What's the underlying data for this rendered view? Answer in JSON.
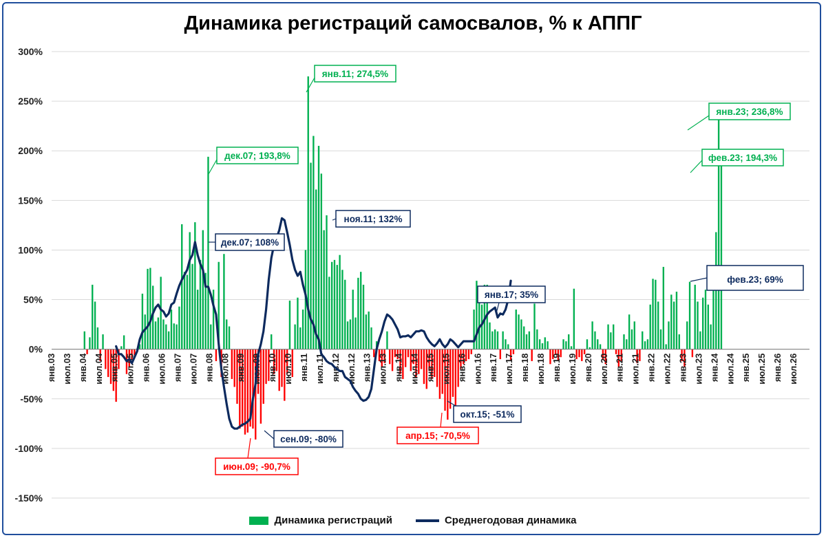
{
  "chart_data": {
    "type": "bar",
    "title": "Динамика регистраций самосвалов, % к АППГ",
    "ylim": [
      -150,
      300
    ],
    "y_tick_labels": [
      "300%",
      "250%",
      "200%",
      "150%",
      "100%",
      "50%",
      "0%",
      "-50%",
      "-100%",
      "-150%"
    ],
    "y_tick_values": [
      300,
      250,
      200,
      150,
      100,
      50,
      0,
      -50,
      -100,
      -150
    ],
    "x_tick_labels": [
      "янв.03",
      "июл.03",
      "янв.04",
      "июл.04",
      "янв.05",
      "июл.05",
      "янв.06",
      "июл.06",
      "янв.07",
      "июл.07",
      "янв.08",
      "июл.08",
      "янв.09",
      "июл.09",
      "янв.10",
      "июл.10",
      "янв.11",
      "июл.11",
      "янв.12",
      "июл.12",
      "янв.13",
      "июл.13",
      "янв.14",
      "июл.14",
      "янв.15",
      "июл.15",
      "янв.16",
      "июл.16",
      "янв.17",
      "июл.17",
      "янв.18",
      "июл.18",
      "янв.19",
      "июл.19",
      "янв.20",
      "июл.20",
      "янв.21",
      "июл.21",
      "янв.22",
      "июл.22",
      "янв.23",
      "июл.23",
      "янв.24",
      "июл.24",
      "янв.25",
      "июл.25",
      "янв.26",
      "июл.26"
    ],
    "grid": true,
    "legend_position": "bottom",
    "series": [
      {
        "name": "Динамика регистраций",
        "kind": "bar",
        "color_positive": "#00b050",
        "color_negative": "#ff0000",
        "start": "янв.03",
        "values": [
          0,
          0,
          0,
          0,
          0,
          0,
          0,
          0,
          0,
          0,
          0,
          0,
          18,
          -5,
          12,
          65,
          48,
          22,
          -12,
          15,
          -20,
          -28,
          -35,
          -42,
          -53,
          -20,
          3,
          14,
          -25,
          -18,
          -10,
          -6,
          -3,
          5,
          56,
          35,
          81,
          82,
          64,
          28,
          32,
          73,
          30,
          25,
          18,
          40,
          26,
          25,
          43,
          126,
          78,
          75,
          118,
          86,
          128,
          60,
          90,
          120,
          77,
          194,
          25,
          60,
          -12,
          88,
          -28,
          96,
          30,
          23,
          -30,
          -38,
          -55,
          -80,
          -78,
          -86,
          -84,
          -78,
          -80,
          -91,
          -45,
          -75,
          -55,
          -35,
          -32,
          15,
          -25,
          -22,
          -42,
          -38,
          -52,
          -25,
          49,
          -28,
          25,
          52,
          22,
          40,
          100,
          275,
          188,
          215,
          161,
          205,
          177,
          120,
          135,
          73,
          88,
          90,
          85,
          95,
          80,
          70,
          28,
          30,
          60,
          32,
          72,
          78,
          65,
          35,
          38,
          22,
          -8,
          8,
          -12,
          -18,
          -14,
          18,
          -15,
          -22,
          -8,
          -10,
          -25,
          -30,
          -18,
          -8,
          -22,
          -15,
          -28,
          -25,
          -20,
          -35,
          -40,
          -22,
          -30,
          -28,
          -38,
          -50,
          -45,
          -62,
          -71,
          -60,
          -48,
          -58,
          -38,
          -20,
          -15,
          -12,
          -10,
          -5,
          40,
          69,
          50,
          45,
          65,
          65,
          27,
          18,
          20,
          18,
          -10,
          18,
          10,
          5,
          -12,
          -5,
          40,
          35,
          30,
          23,
          15,
          18,
          -12,
          46,
          20,
          10,
          6,
          12,
          8,
          -15,
          -10,
          -5,
          -12,
          -8,
          10,
          8,
          15,
          3,
          61,
          -10,
          -8,
          -12,
          -5,
          10,
          2,
          28,
          18,
          10,
          5,
          -10,
          -15,
          25,
          17,
          25,
          -5,
          -18,
          -12,
          15,
          10,
          35,
          20,
          28,
          -14,
          -12,
          18,
          8,
          10,
          45,
          71,
          70,
          48,
          20,
          83,
          5,
          28,
          55,
          48,
          58,
          15,
          -12,
          -18,
          28,
          68,
          -8,
          65,
          48,
          18,
          52,
          60,
          45,
          25,
          75,
          118,
          237,
          194
        ]
      },
      {
        "name": "Среднегодовая динамика",
        "kind": "line",
        "color": "#0d2a5e",
        "start": "янв.05",
        "values": [
          3,
          -5,
          -5,
          -8,
          -12,
          -10,
          -14,
          -8,
          -2,
          10,
          17,
          20,
          23,
          28,
          36,
          42,
          45,
          40,
          38,
          33,
          36,
          45,
          47,
          56,
          64,
          70,
          75,
          80,
          90,
          95,
          108,
          95,
          86,
          80,
          63,
          63,
          55,
          44,
          35,
          5,
          -20,
          -38,
          -55,
          -70,
          -78,
          -80,
          -80,
          -78,
          -76,
          -75,
          -73,
          -70,
          -50,
          -35,
          -5,
          5,
          18,
          40,
          70,
          92,
          105,
          112,
          120,
          132,
          130,
          118,
          105,
          90,
          80,
          74,
          78,
          65,
          55,
          40,
          30,
          25,
          15,
          10,
          -5,
          -8,
          -12,
          -14,
          -15,
          -18,
          -20,
          -22,
          -22,
          -28,
          -30,
          -32,
          -38,
          -42,
          -45,
          -50,
          -52,
          -51,
          -48,
          -40,
          -20,
          0,
          10,
          18,
          28,
          35,
          33,
          30,
          25,
          20,
          12,
          13,
          13,
          14,
          12,
          15,
          18,
          18,
          19,
          18,
          12,
          8,
          5,
          3,
          6,
          10,
          5,
          2,
          5,
          10,
          8,
          5,
          2,
          5,
          8,
          8,
          8,
          8,
          8,
          15,
          22,
          25,
          30,
          35,
          38,
          40,
          42,
          32,
          36,
          35,
          40,
          50,
          69
        ]
      }
    ],
    "annotations": [
      {
        "label": "дек.07; 193,8%",
        "color": "#00b050",
        "series": "Динамика регистраций"
      },
      {
        "label": "янв.11; 274,5%",
        "color": "#00b050",
        "series": "Динамика регистраций"
      },
      {
        "label": "янв.23; 236,8%",
        "color": "#00b050",
        "series": "Динамика регистраций"
      },
      {
        "label": "фев.23; 194,3%",
        "color": "#00b050",
        "series": "Динамика регистраций"
      },
      {
        "label": "июн.09; -90,7%",
        "color": "#ff0000",
        "series": "Динамика регистраций"
      },
      {
        "label": "апр.15; -70,5%",
        "color": "#ff0000",
        "series": "Динамика регистраций"
      },
      {
        "label": "дек.07; 108%",
        "color": "#0d2a5e",
        "series": "Среднегодовая динамика"
      },
      {
        "label": "ноя.11; 132%",
        "color": "#0d2a5e",
        "series": "Среднегодовая динамика"
      },
      {
        "label": "янв.17; 35%",
        "color": "#0d2a5e",
        "series": "Среднегодовая динамика"
      },
      {
        "label": "сен.09; -80%",
        "color": "#0d2a5e",
        "series": "Среднегодовая динамика"
      },
      {
        "label": "окт.15; -51%",
        "color": "#0d2a5e",
        "series": "Среднегодовая динамика"
      },
      {
        "label": "фев.23; 69%",
        "color": "#0d2a5e",
        "series": "Среднегодовая динамика"
      }
    ]
  }
}
